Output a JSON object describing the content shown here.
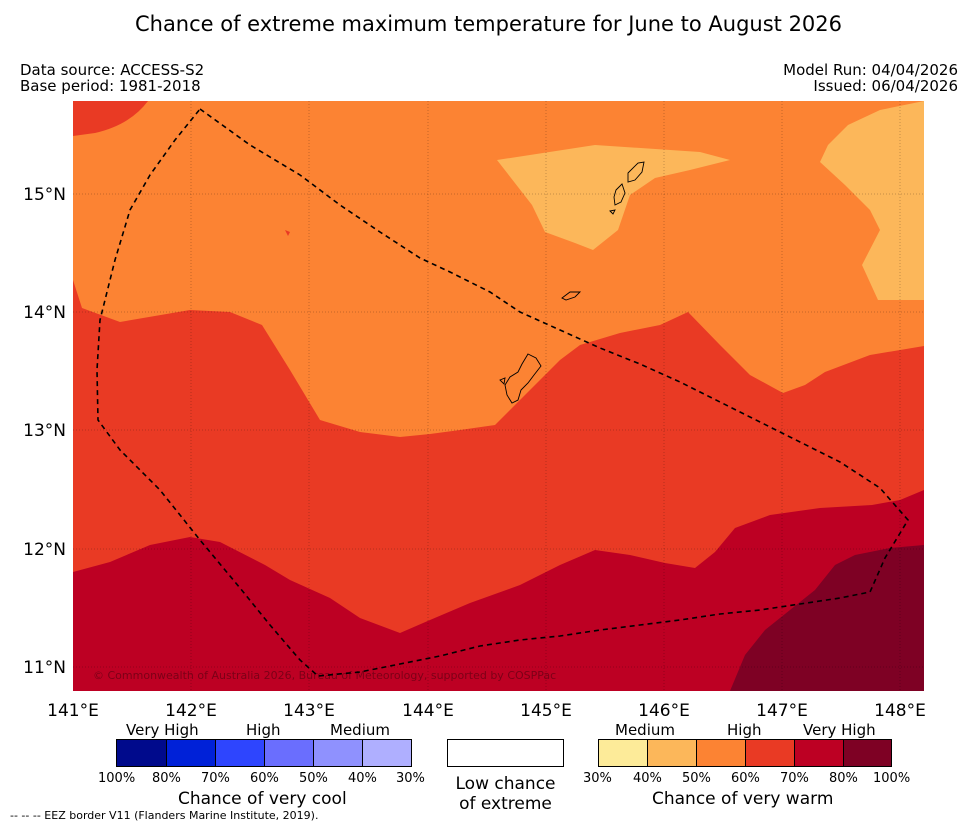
{
  "title": "Chance of extreme maximum temperature for June to August 2026",
  "meta": {
    "data_source": "Data source: ACCESS-S2",
    "base_period": "Base period: 1981-2018",
    "model_run": "Model Run: 04/04/2026",
    "issued": "Issued: 06/04/2026"
  },
  "map": {
    "lon_labels": [
      "141°E",
      "142°E",
      "143°E",
      "144°E",
      "145°E",
      "146°E",
      "147°E",
      "148°E"
    ],
    "lat_labels": [
      "15°N",
      "14°N",
      "13°N",
      "12°N",
      "11°N"
    ],
    "copyright": "© Commonwealth of Australia 2026, Bureau of Meteorology, supported by COSPPac",
    "colors": {
      "c30_40": "#fbeb99",
      "c40_50": "#fcb75a",
      "c50_60": "#fc8333",
      "c60_70": "#e93a24",
      "c70_80": "#bd0023",
      "c80_100": "#7e0124"
    }
  },
  "legend": {
    "cool": {
      "title": "Chance of very cool",
      "category_labels": [
        "Very High",
        "High",
        "Medium"
      ],
      "percent_labels": [
        "100%",
        "80%",
        "70%",
        "60%",
        "50%",
        "40%",
        "30%"
      ],
      "colors": [
        "#000a8c",
        "#0021d8",
        "#2e45fe",
        "#6a6efe",
        "#8f91fe",
        "#afafff"
      ]
    },
    "low": {
      "line1": "Low chance",
      "line2": "of extreme"
    },
    "warm": {
      "title": "Chance of very warm",
      "category_labels": [
        "Medium",
        "High",
        "Very High"
      ],
      "percent_labels": [
        "30%",
        "40%",
        "50%",
        "60%",
        "70%",
        "80%",
        "100%"
      ],
      "colors": [
        "#fdeb99",
        "#fcb75a",
        "#fc8333",
        "#e93a24",
        "#bd0023",
        "#7e0124"
      ]
    }
  },
  "footnote": "--  --  -- EEZ border V11 (Flanders Marine Institute, 2019)."
}
